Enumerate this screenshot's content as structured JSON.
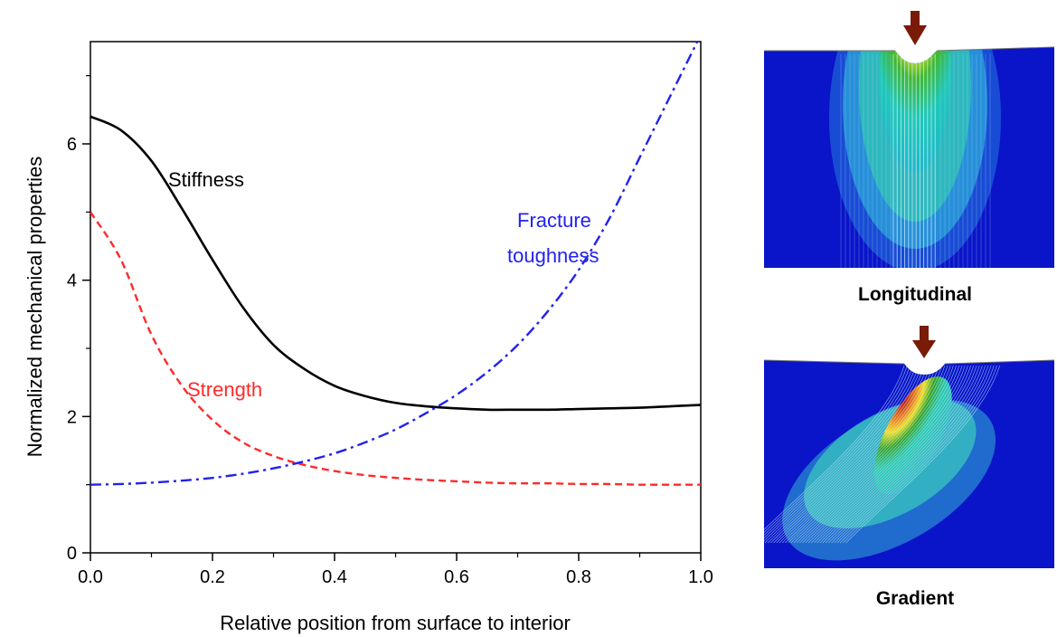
{
  "chart_data": {
    "type": "line",
    "title": "",
    "xlabel": "Relative position from surface to interior",
    "ylabel": "Normalized mechanical properties",
    "xlim": [
      0,
      1
    ],
    "ylim": [
      0,
      7.5
    ],
    "x_ticks": [
      0,
      0.2,
      0.4,
      0.6,
      0.8,
      1.0
    ],
    "x_tick_labels": [
      "0.0",
      "0.2",
      "0.4",
      "0.6",
      "0.8",
      "1.0"
    ],
    "y_ticks": [
      0,
      2,
      4,
      6
    ],
    "y_tick_labels": [
      "0",
      "2",
      "4",
      "6"
    ],
    "grid": false,
    "legend": "none",
    "x": [
      0,
      0.05,
      0.1,
      0.15,
      0.2,
      0.25,
      0.3,
      0.35,
      0.4,
      0.45,
      0.5,
      0.55,
      0.6,
      0.65,
      0.7,
      0.75,
      0.8,
      0.85,
      0.9,
      0.95,
      1.0
    ],
    "series": [
      {
        "name": "Stiffness",
        "color": "#000000",
        "style": "solid",
        "values": [
          6.4,
          6.2,
          5.75,
          5.05,
          4.3,
          3.6,
          3.05,
          2.7,
          2.45,
          2.3,
          2.2,
          2.15,
          2.12,
          2.1,
          2.1,
          2.1,
          2.11,
          2.12,
          2.13,
          2.15,
          2.17
        ]
      },
      {
        "name": "Strength",
        "color": "#ff2a2a",
        "style": "dashed",
        "values": [
          5.0,
          4.3,
          3.2,
          2.45,
          1.95,
          1.62,
          1.42,
          1.29,
          1.2,
          1.14,
          1.1,
          1.07,
          1.05,
          1.03,
          1.02,
          1.02,
          1.01,
          1.01,
          1.0,
          1.0,
          1.0
        ]
      },
      {
        "name": "Fracture toughness",
        "color": "#2222ee",
        "style": "dashdot",
        "values": [
          1.0,
          1.01,
          1.03,
          1.06,
          1.1,
          1.16,
          1.24,
          1.34,
          1.46,
          1.62,
          1.81,
          2.05,
          2.32,
          2.65,
          3.05,
          3.55,
          4.15,
          4.9,
          5.8,
          6.7,
          7.6
        ]
      }
    ],
    "annotations": [
      {
        "text": "Stiffness",
        "color": "#000000"
      },
      {
        "text": "Strength",
        "color": "#ff2a2a"
      },
      {
        "text": "Fracture",
        "color": "#2222ee"
      },
      {
        "text": "toughness",
        "color": "#2222ee"
      }
    ]
  },
  "panels": {
    "top": {
      "label": "Longitudinal",
      "arrow_color": "#7a1a08",
      "background_color": "#0a14c8"
    },
    "bottom": {
      "label": "Gradient",
      "arrow_color": "#7a1a08",
      "background_color": "#0a14c8"
    }
  }
}
